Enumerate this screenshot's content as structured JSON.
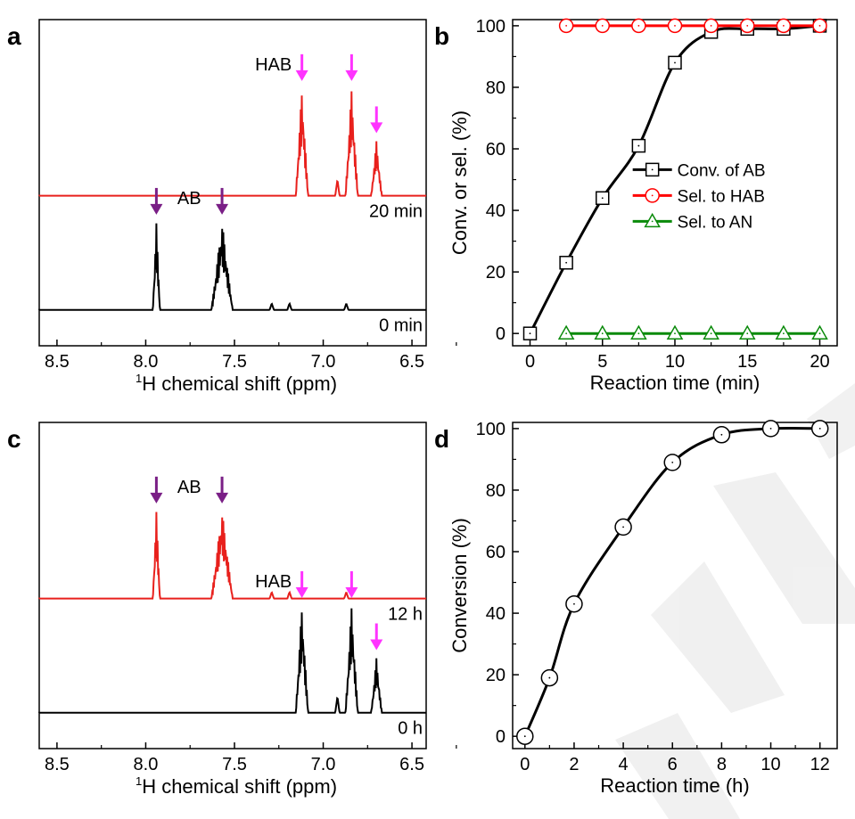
{
  "chart_data": [
    {
      "panel": "a",
      "type": "line",
      "kind": "nmr-spectra",
      "xlabel_sup": "1",
      "xlabel": "H chemical shift (ppm)",
      "xlim": [
        8.6,
        6.42
      ],
      "xticks": [
        "8.5",
        "8.0",
        "7.5",
        "7.0",
        "6.5"
      ],
      "spectra": [
        {
          "time": "20 min",
          "color": "#e8201c",
          "compound": "HAB",
          "peaks_ppm": [
            7.12,
            6.84,
            6.7
          ]
        },
        {
          "time": "0 min",
          "color": "#000000",
          "compound": "AB",
          "peaks_ppm": [
            7.94,
            7.57
          ]
        }
      ],
      "arrow_colors": {
        "HAB": "#ff33ff",
        "AB": "#7a1f86"
      }
    },
    {
      "panel": "b",
      "type": "line",
      "xlabel": "Reaction time (min)",
      "ylabel": "Conv. or sel. (%)",
      "xlim": [
        -1.2,
        21.2
      ],
      "ylim": [
        -4,
        102
      ],
      "xticks": [
        0,
        5,
        10,
        15,
        20
      ],
      "yticks": [
        0,
        20,
        40,
        60,
        80,
        100
      ],
      "legend_position": "center-right",
      "series": [
        {
          "name": "Conv. of AB",
          "color": "#000000",
          "marker": "square",
          "x": [
            0,
            2.5,
            5,
            7.5,
            10,
            12.5,
            15,
            17.5,
            20
          ],
          "y": [
            0,
            23,
            44,
            61,
            88,
            98,
            99,
            99,
            100
          ]
        },
        {
          "name": "Sel. to HAB",
          "color": "#ff0000",
          "marker": "circle",
          "x": [
            2.5,
            5,
            7.5,
            10,
            12.5,
            15,
            17.5,
            20
          ],
          "y": [
            100,
            100,
            100,
            100,
            100,
            100,
            100,
            100
          ]
        },
        {
          "name": "Sel. to AN",
          "color": "#0a8a0a",
          "marker": "triangle",
          "x": [
            2.5,
            5,
            7.5,
            10,
            12.5,
            15,
            17.5,
            20
          ],
          "y": [
            0,
            0,
            0,
            0,
            0,
            0,
            0,
            0
          ]
        }
      ]
    },
    {
      "panel": "c",
      "type": "line",
      "kind": "nmr-spectra",
      "xlabel_sup": "1",
      "xlabel": "H chemical shift (ppm)",
      "xlim": [
        8.6,
        6.42
      ],
      "xticks": [
        "8.5",
        "8.0",
        "7.5",
        "7.0",
        "6.5"
      ],
      "spectra": [
        {
          "time": "12 h",
          "color": "#e8201c",
          "compound": "AB",
          "peaks_ppm": [
            7.94,
            7.57
          ]
        },
        {
          "time": "0 h",
          "color": "#000000",
          "compound": "HAB",
          "peaks_ppm": [
            7.12,
            6.84,
            6.7
          ]
        }
      ],
      "arrow_colors": {
        "HAB": "#ff33ff",
        "AB": "#7a1f86"
      }
    },
    {
      "panel": "d",
      "type": "line",
      "xlabel": "Reaction time (h)",
      "ylabel": "Conversion (%)",
      "xlim": [
        -0.5,
        12.7
      ],
      "ylim": [
        -4,
        102
      ],
      "xticks": [
        0,
        2,
        4,
        6,
        8,
        10,
        12
      ],
      "yticks": [
        0,
        20,
        40,
        60,
        80,
        100
      ],
      "series": [
        {
          "name": "Conversion",
          "color": "#000000",
          "marker": "circle",
          "x": [
            0,
            1,
            2,
            4,
            6,
            8,
            10,
            12
          ],
          "y": [
            0,
            19,
            43,
            68,
            89,
            98,
            100,
            100
          ]
        }
      ]
    }
  ]
}
